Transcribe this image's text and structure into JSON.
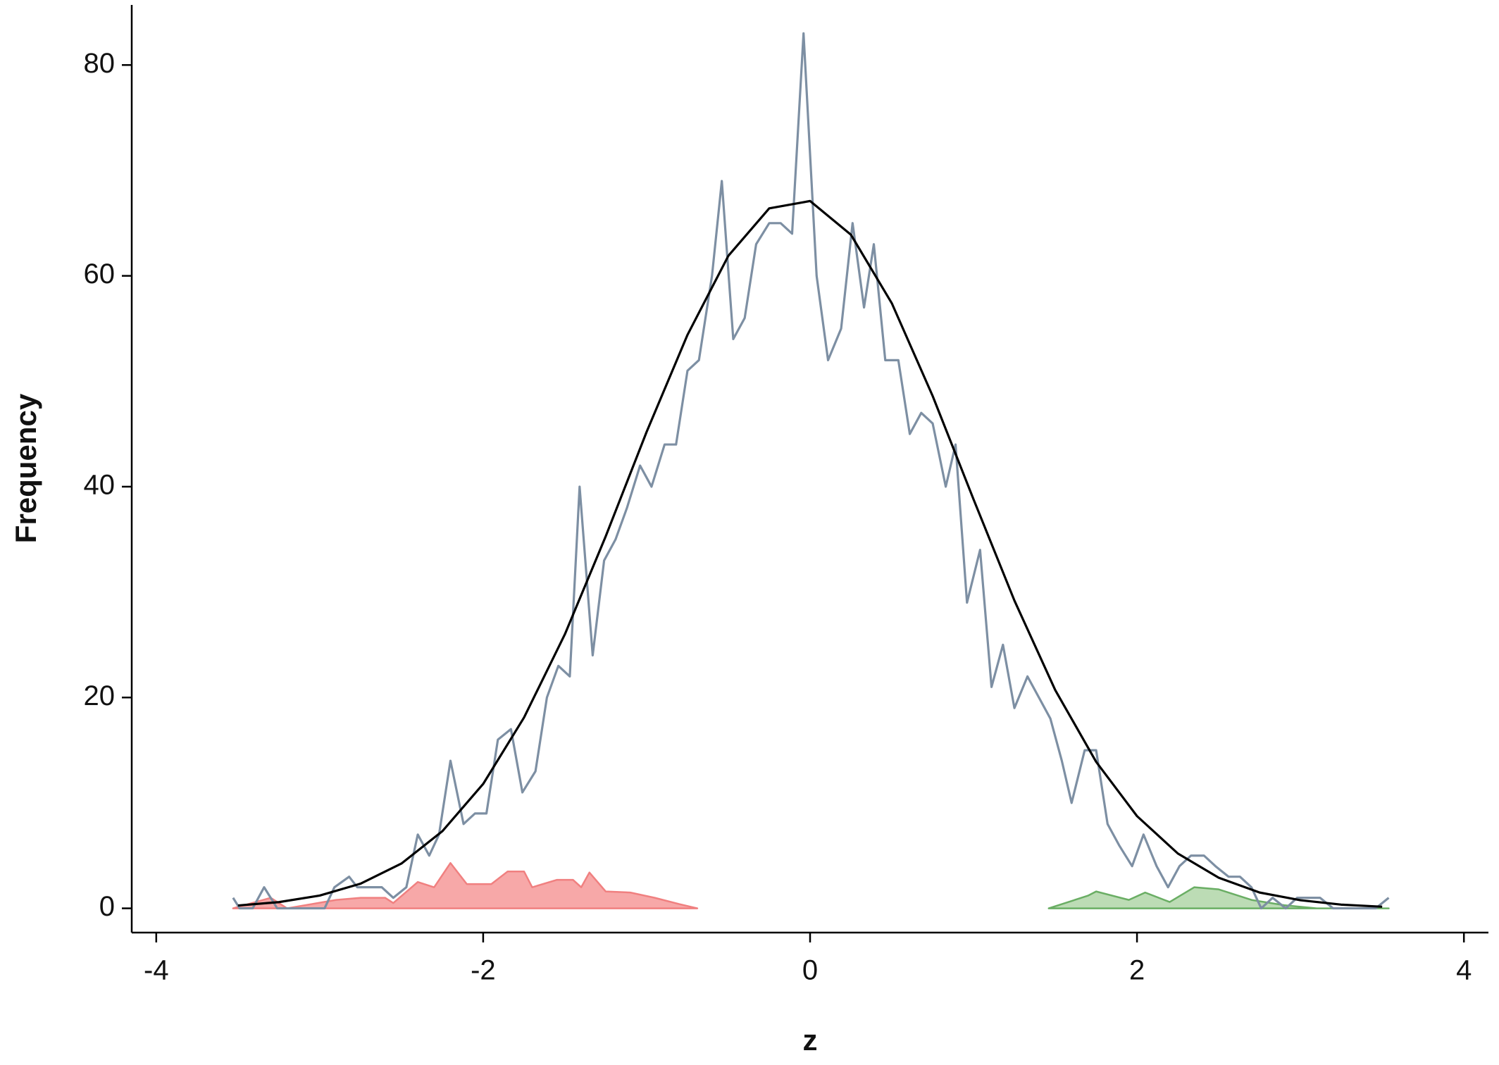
{
  "chart_data": {
    "type": "line",
    "x_label": "z",
    "y_label": "Frequency",
    "xlim": [
      -4.15,
      4.15
    ],
    "ylim": [
      -2.3,
      85.7
    ],
    "xticks": [
      -4,
      -2,
      0,
      2,
      4
    ],
    "yticks": [
      0,
      20,
      40,
      60,
      80
    ],
    "grid": false,
    "series": [
      {
        "color": "#f08080",
        "fill": "#f7a8a8",
        "x": [
          -3.53,
          -3.3,
          -3.2,
          -2.9,
          -2.75,
          -2.6,
          -2.55,
          -2.4,
          -2.3,
          -2.2,
          -2.1,
          -1.95,
          -1.85,
          -1.75,
          -1.7,
          -1.55,
          -1.45,
          -1.4,
          -1.35,
          -1.25,
          -1.1,
          -0.95,
          -0.8,
          -0.69
        ],
        "values": [
          0,
          1,
          0,
          0.8,
          1,
          1,
          0.5,
          2.5,
          2,
          4.3,
          2.3,
          2.3,
          3.5,
          3.5,
          2,
          2.7,
          2.7,
          2,
          3.4,
          1.6,
          1.5,
          1,
          0.4,
          0
        ]
      },
      {
        "color": "#6aae64",
        "fill": "#bcdcb5",
        "x": [
          1.46,
          1.7,
          1.75,
          1.95,
          2.05,
          2.2,
          2.35,
          2.5,
          2.7,
          2.9,
          3.1,
          3.54
        ],
        "values": [
          0,
          1.2,
          1.6,
          0.8,
          1.5,
          0.6,
          2,
          1.8,
          0.8,
          0.3,
          0,
          0
        ]
      },
      {
        "color": "#7d8fa3",
        "x": [
          -3.53,
          -3.49,
          -3.41,
          -3.34,
          -3.26,
          -2.97,
          -2.91,
          -2.82,
          -2.77,
          -2.62,
          -2.55,
          -2.47,
          -2.4,
          -2.33,
          -2.27,
          -2.2,
          -2.12,
          -2.05,
          -1.98,
          -1.91,
          -1.83,
          -1.76,
          -1.68,
          -1.61,
          -1.54,
          -1.47,
          -1.41,
          -1.33,
          -1.26,
          -1.19,
          -1.12,
          -1.04,
          -0.97,
          -0.89,
          -0.82,
          -0.75,
          -0.68,
          -0.6,
          -0.54,
          -0.47,
          -0.4,
          -0.33,
          -0.25,
          -0.18,
          -0.11,
          -0.04,
          0.04,
          0.11,
          0.19,
          0.26,
          0.33,
          0.39,
          0.46,
          0.54,
          0.61,
          0.68,
          0.75,
          0.83,
          0.89,
          0.96,
          1.04,
          1.11,
          1.18,
          1.25,
          1.33,
          1.4,
          1.47,
          1.54,
          1.6,
          1.68,
          1.75,
          1.82,
          1.89,
          1.97,
          2.04,
          2.12,
          2.19,
          2.26,
          2.33,
          2.41,
          2.48,
          2.56,
          2.63,
          2.7,
          2.76,
          2.83,
          2.91,
          2.98,
          3.05,
          3.12,
          3.2,
          3.46,
          3.54
        ],
        "values": [
          1,
          0,
          0,
          2,
          0,
          0,
          2,
          3,
          2,
          2,
          1,
          2,
          7,
          5,
          7,
          14,
          8,
          9,
          9,
          16,
          17,
          11,
          13,
          20,
          23,
          22,
          40,
          24,
          33,
          35,
          38,
          42,
          40,
          44,
          44,
          51,
          52,
          60,
          69,
          54,
          56,
          63,
          65,
          65,
          64,
          83,
          60,
          52,
          55,
          65,
          57,
          63,
          52,
          52,
          45,
          47,
          46,
          40,
          44,
          29,
          34,
          21,
          25,
          19,
          22,
          20,
          18,
          14,
          10,
          15,
          15,
          8,
          6,
          4,
          7,
          4,
          2,
          4,
          5,
          5,
          4,
          3,
          3,
          2,
          0,
          1,
          0,
          1,
          1,
          1,
          0,
          0,
          1
        ]
      },
      {
        "color": "#000000",
        "x": [
          -3.5,
          -3.25,
          -3.0,
          -2.75,
          -2.5,
          -2.25,
          -2.0,
          -1.75,
          -1.5,
          -1.25,
          -1.0,
          -0.75,
          -0.5,
          -0.25,
          0,
          0.25,
          0.5,
          0.75,
          1.0,
          1.25,
          1.5,
          1.75,
          2.0,
          2.25,
          2.5,
          2.75,
          3.0,
          3.25,
          3.5
        ],
        "values": [
          0.27,
          0.59,
          1.21,
          2.34,
          4.25,
          7.31,
          11.8,
          18.1,
          26.0,
          35.3,
          45.2,
          54.4,
          61.9,
          66.4,
          67.1,
          63.9,
          57.4,
          48.6,
          38.8,
          29.2,
          20.7,
          13.9,
          8.75,
          5.2,
          2.9,
          1.5,
          0.77,
          0.35,
          0.15
        ]
      }
    ]
  }
}
